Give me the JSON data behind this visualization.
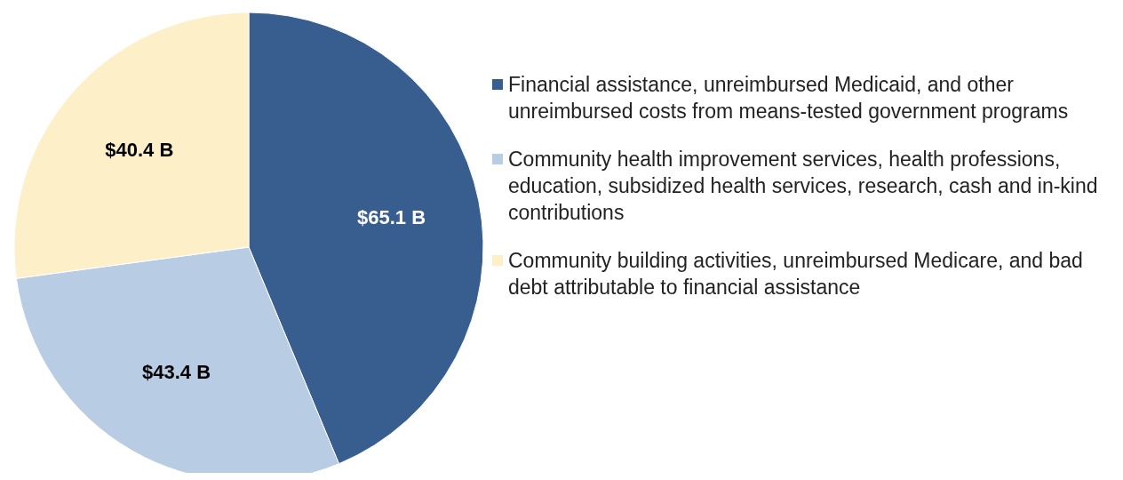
{
  "chart_data": {
    "type": "pie",
    "categories": [
      "Financial assistance, unreimbursed Medicaid, and other unreimbursed costs from means-tested government programs",
      "Community health improvement services, health professions, education, subsidized health services, research, cash and in-kind contributions",
      "Community building activities, unreimbursed Medicare, and bad debt attributable to financial assistance"
    ],
    "values": [
      65.1,
      43.4,
      40.4
    ],
    "colors": [
      "#375e8f",
      "#b8cce4",
      "#fdf0c8"
    ],
    "value_labels": [
      "$65.1 B",
      "$43.4 B",
      "$40.4 B"
    ],
    "legend": "right"
  }
}
